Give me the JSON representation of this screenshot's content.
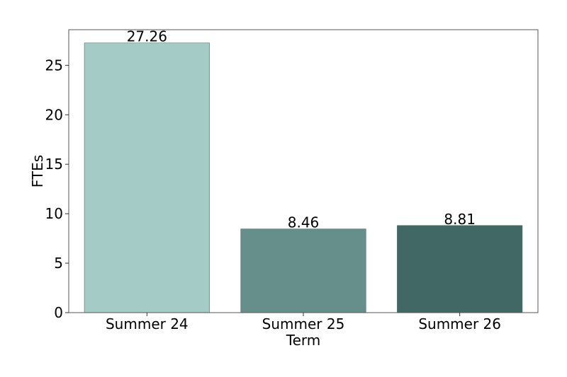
{
  "chart_data": {
    "type": "bar",
    "categories": [
      "Summer 24",
      "Summer 25",
      "Summer 26"
    ],
    "values": [
      27.26,
      8.46,
      8.81
    ],
    "value_labels": [
      "27.26",
      "8.46",
      "8.81"
    ],
    "colors": [
      "#a5cbc7",
      "#668e8a",
      "#426865"
    ],
    "xlabel": "Term",
    "ylabel": "FTEs",
    "ylim": [
      0,
      28.6
    ],
    "yticks": [
      0,
      5,
      10,
      15,
      20,
      25
    ],
    "ytick_labels": [
      "0",
      "5",
      "10",
      "15",
      "20",
      "25"
    ],
    "grid": false,
    "legend": "none"
  }
}
